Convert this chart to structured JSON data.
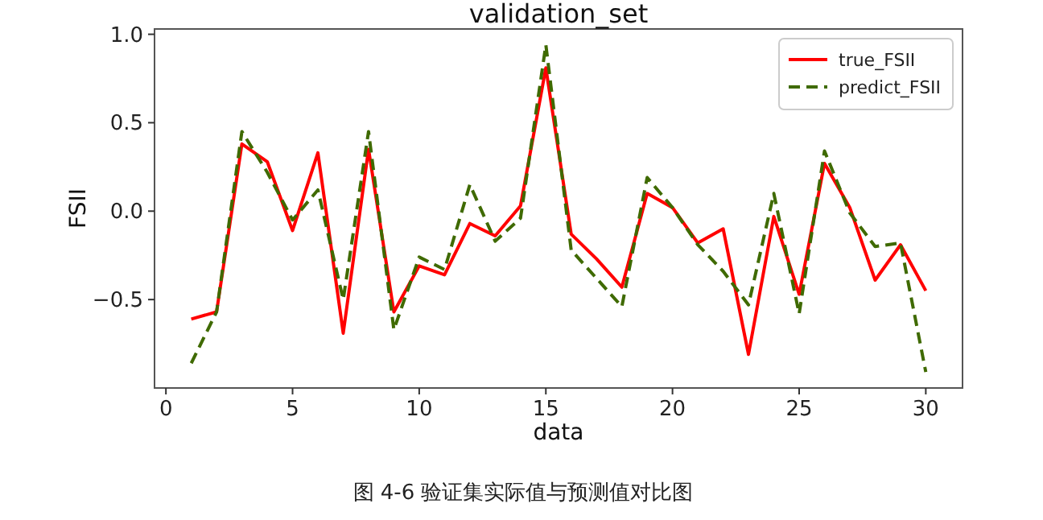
{
  "chart_data": {
    "type": "line",
    "title": "validation_set",
    "xlabel": "data",
    "ylabel": "FSII",
    "annotations": [
      "图 4-6 验证集实际值与预测值对比图"
    ],
    "x": [
      1,
      2,
      3,
      4,
      5,
      6,
      7,
      8,
      9,
      10,
      11,
      12,
      13,
      14,
      15,
      16,
      17,
      18,
      19,
      20,
      21,
      22,
      23,
      24,
      25,
      26,
      27,
      28,
      29,
      30
    ],
    "series": [
      {
        "name": "true_FSII",
        "color": "#ff0000",
        "line_style": "solid",
        "values": [
          -0.61,
          -0.57,
          0.38,
          0.28,
          -0.11,
          0.33,
          -0.69,
          0.35,
          -0.57,
          -0.31,
          -0.36,
          -0.07,
          -0.14,
          0.03,
          0.81,
          -0.13,
          -0.27,
          -0.43,
          0.1,
          0.02,
          -0.18,
          -0.1,
          -0.81,
          -0.03,
          -0.47,
          0.27,
          0.02,
          -0.39,
          -0.19,
          -0.45
        ]
      },
      {
        "name": "predict_FSII",
        "color": "#3f6a00",
        "line_style": "dashed",
        "values": [
          -0.86,
          -0.57,
          0.45,
          0.22,
          -0.05,
          0.12,
          -0.5,
          0.45,
          -0.67,
          -0.26,
          -0.33,
          0.15,
          -0.17,
          -0.04,
          0.94,
          -0.22,
          -0.38,
          -0.54,
          0.19,
          0.02,
          -0.19,
          -0.34,
          -0.53,
          0.1,
          -0.58,
          0.34,
          -0.01,
          -0.2,
          -0.18,
          -0.91
        ]
      }
    ],
    "xlim": [
      -0.45,
      31.45
    ],
    "ylim": [
      -1.0,
      1.03
    ],
    "xticks": [
      0,
      5,
      10,
      15,
      20,
      25,
      30
    ],
    "yticks": [
      {
        "value": -0.5,
        "label": "−0.5"
      },
      {
        "value": 0,
        "label": "0.0"
      },
      {
        "value": 0.5,
        "label": "0.5"
      },
      {
        "value": 1.0,
        "label": "1.0"
      }
    ],
    "legend": "top right"
  }
}
